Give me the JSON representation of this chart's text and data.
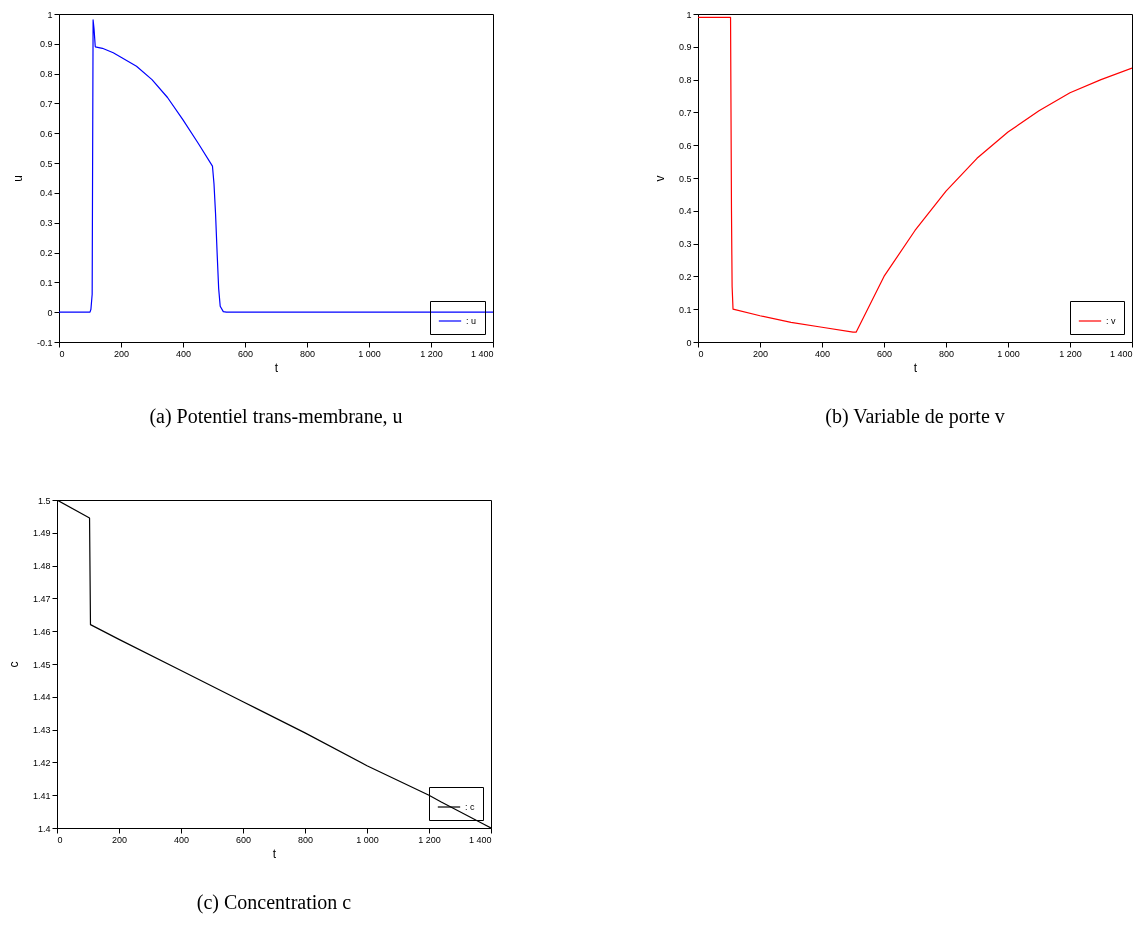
{
  "chart_data": [
    {
      "type": "line",
      "title": "(a) Potentiel trans-membrane, u",
      "xlabel": "t",
      "ylabel": "u",
      "x": [
        0,
        100,
        103,
        107,
        110,
        113,
        117,
        140,
        175,
        200,
        250,
        300,
        350,
        400,
        450,
        495,
        500,
        505,
        510,
        515,
        520,
        530,
        540,
        1400
      ],
      "series": [
        {
          "name": ": u",
          "color": "#0000ff",
          "values": [
            0,
            0,
            0.01,
            0.06,
            0.98,
            0.95,
            0.89,
            0.885,
            0.87,
            0.855,
            0.825,
            0.78,
            0.72,
            0.645,
            0.565,
            0.49,
            0.43,
            0.33,
            0.2,
            0.08,
            0.02,
            0.002,
            0,
            0
          ]
        }
      ],
      "xlim": [
        0,
        1400
      ],
      "xticks": [
        0,
        200,
        400,
        600,
        800,
        {
          "value": 1000,
          "label": "1 000"
        },
        {
          "value": 1200,
          "label": "1 200"
        },
        {
          "value": 1400,
          "label": "1 400"
        }
      ],
      "ylim": [
        -0.1,
        1
      ],
      "yticks": [
        -0.1,
        0,
        0.1,
        0.2,
        0.3,
        0.4,
        0.5,
        0.6,
        0.7,
        0.8,
        0.9,
        1
      ],
      "legend": "bottom right"
    },
    {
      "type": "line",
      "title": "(b) Variable de porte v",
      "xlabel": "t",
      "ylabel": "v",
      "x": [
        0,
        105,
        108,
        110,
        113,
        200,
        300,
        400,
        500,
        510,
        600,
        700,
        800,
        900,
        1000,
        1100,
        1200,
        1300,
        1400
      ],
      "series": [
        {
          "name": ": v",
          "color": "#ff0000",
          "values": [
            0.99,
            0.99,
            0.4,
            0.17,
            0.1,
            0.08,
            0.06,
            0.045,
            0.03,
            0.03,
            0.2,
            0.34,
            0.46,
            0.56,
            0.64,
            0.705,
            0.76,
            0.8,
            0.835
          ]
        }
      ],
      "xlim": [
        0,
        1400
      ],
      "xticks": [
        0,
        200,
        400,
        600,
        800,
        {
          "value": 1000,
          "label": "1 000"
        },
        {
          "value": 1200,
          "label": "1 200"
        },
        {
          "value": 1400,
          "label": "1 400"
        }
      ],
      "ylim": [
        0,
        1
      ],
      "yticks": [
        0,
        0.1,
        0.2,
        0.3,
        0.4,
        0.5,
        0.6,
        0.7,
        0.8,
        0.9,
        1
      ],
      "legend": "bottom right"
    },
    {
      "type": "line",
      "title": "(c) Concentration c",
      "xlabel": "t",
      "ylabel": "c",
      "x": [
        0,
        105,
        108,
        200,
        400,
        600,
        800,
        1000,
        1200,
        1238,
        1380,
        1400
      ],
      "series": [
        {
          "name": ": c",
          "color": "#000000",
          "values": [
            1.5,
            1.4945,
            1.462,
            1.4575,
            1.448,
            1.4385,
            1.429,
            1.419,
            1.41,
            1.408,
            1.401,
            1.4
          ]
        }
      ],
      "xlim": [
        0,
        1400
      ],
      "xticks": [
        0,
        200,
        400,
        600,
        800,
        {
          "value": 1000,
          "label": "1 000"
        },
        {
          "value": 1200,
          "label": "1 200"
        },
        {
          "value": 1400,
          "label": "1 400"
        }
      ],
      "ylim": [
        1.4,
        1.5
      ],
      "yticks": [
        1.4,
        1.41,
        1.42,
        1.43,
        1.44,
        1.45,
        1.46,
        1.47,
        1.48,
        1.49,
        1.5
      ],
      "legend": "bottom right"
    }
  ]
}
